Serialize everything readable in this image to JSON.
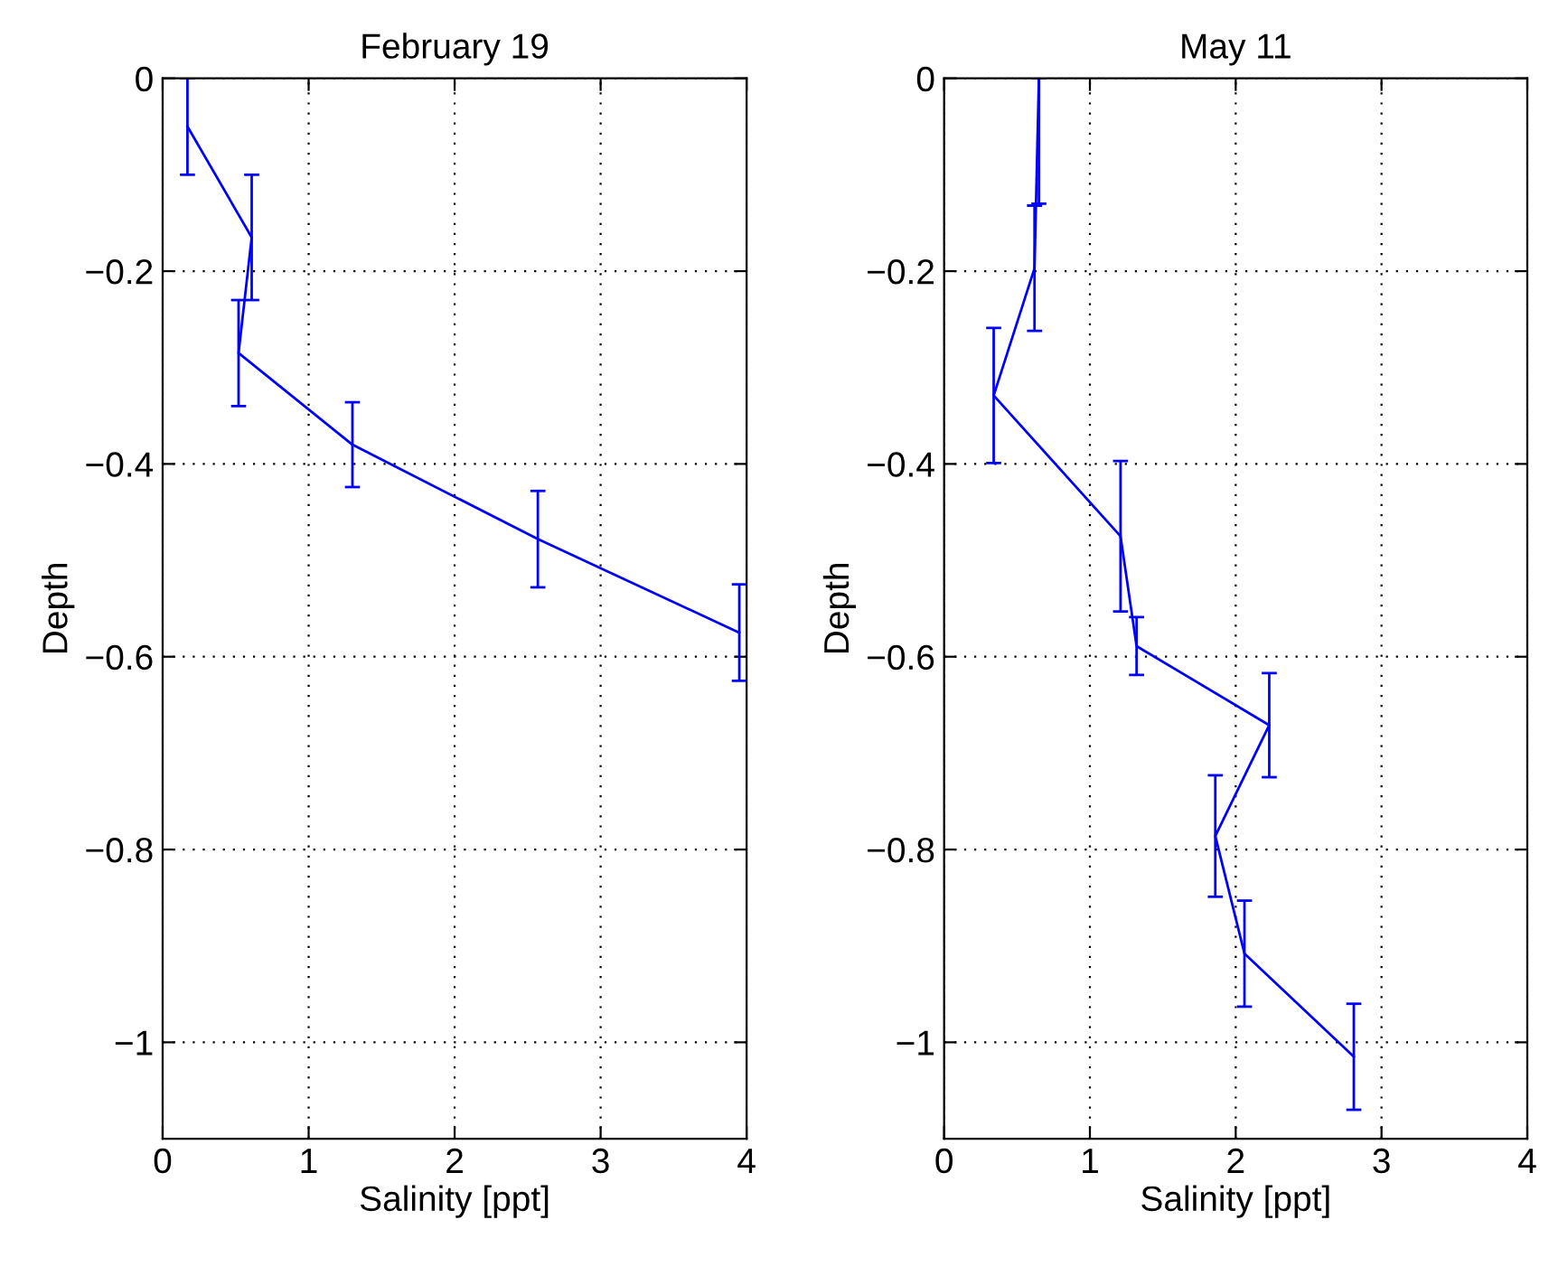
{
  "chart_data": [
    {
      "type": "line",
      "title": "February 19",
      "xlabel": "Salinity [ppt]",
      "ylabel": "Depth",
      "series": [
        {
          "color": "#0000ff",
          "x": [
            0.17,
            0.61,
            0.52,
            1.3,
            2.57,
            3.95
          ],
          "values": [
            -0.05,
            -0.165,
            -0.285,
            -0.38,
            -0.478,
            -0.575
          ],
          "errors": [
            0.05,
            0.065,
            0.055,
            0.044,
            0.05,
            0.05
          ]
        }
      ],
      "xlim": [
        0,
        4
      ],
      "xticks": [
        0,
        1,
        2,
        3,
        4
      ],
      "ylim": [
        -1.1,
        0
      ],
      "yticks": [
        {
          "value": -1,
          "label": "−1"
        },
        {
          "value": -0.8,
          "label": "−0.8"
        },
        {
          "value": -0.6,
          "label": "−0.6"
        },
        {
          "value": -0.4,
          "label": "−0.4"
        },
        {
          "value": -0.2,
          "label": "−0.2"
        },
        0
      ],
      "grid": true,
      "marker": "none",
      "line_style": "solid",
      "legend": false
    },
    {
      "type": "line",
      "title": "May 11",
      "xlabel": "Salinity [ppt]",
      "ylabel": "Depth",
      "series": [
        {
          "color": "#0000ff",
          "x": [
            0.65,
            0.62,
            0.34,
            1.21,
            1.32,
            2.23,
            1.86,
            2.06,
            2.81
          ],
          "values": [
            0,
            -0.197,
            -0.329,
            -0.475,
            -0.589,
            -0.671,
            -0.786,
            -0.908,
            -1.015
          ],
          "errors": [
            [
              -0.13,
              0
            ],
            0.065,
            0.07,
            0.078,
            0.03,
            0.054,
            0.063,
            0.055,
            0.055
          ]
        }
      ],
      "xlim": [
        0,
        4
      ],
      "xticks": [
        0,
        1,
        2,
        3,
        4
      ],
      "ylim": [
        -1.1,
        0
      ],
      "yticks": [
        {
          "value": -1,
          "label": "−1"
        },
        {
          "value": -0.8,
          "label": "−0.8"
        },
        {
          "value": -0.6,
          "label": "−0.6"
        },
        {
          "value": -0.4,
          "label": "−0.4"
        },
        {
          "value": -0.2,
          "label": "−0.2"
        },
        0
      ],
      "grid": true,
      "marker": "none",
      "line_style": "solid",
      "legend": false
    }
  ]
}
